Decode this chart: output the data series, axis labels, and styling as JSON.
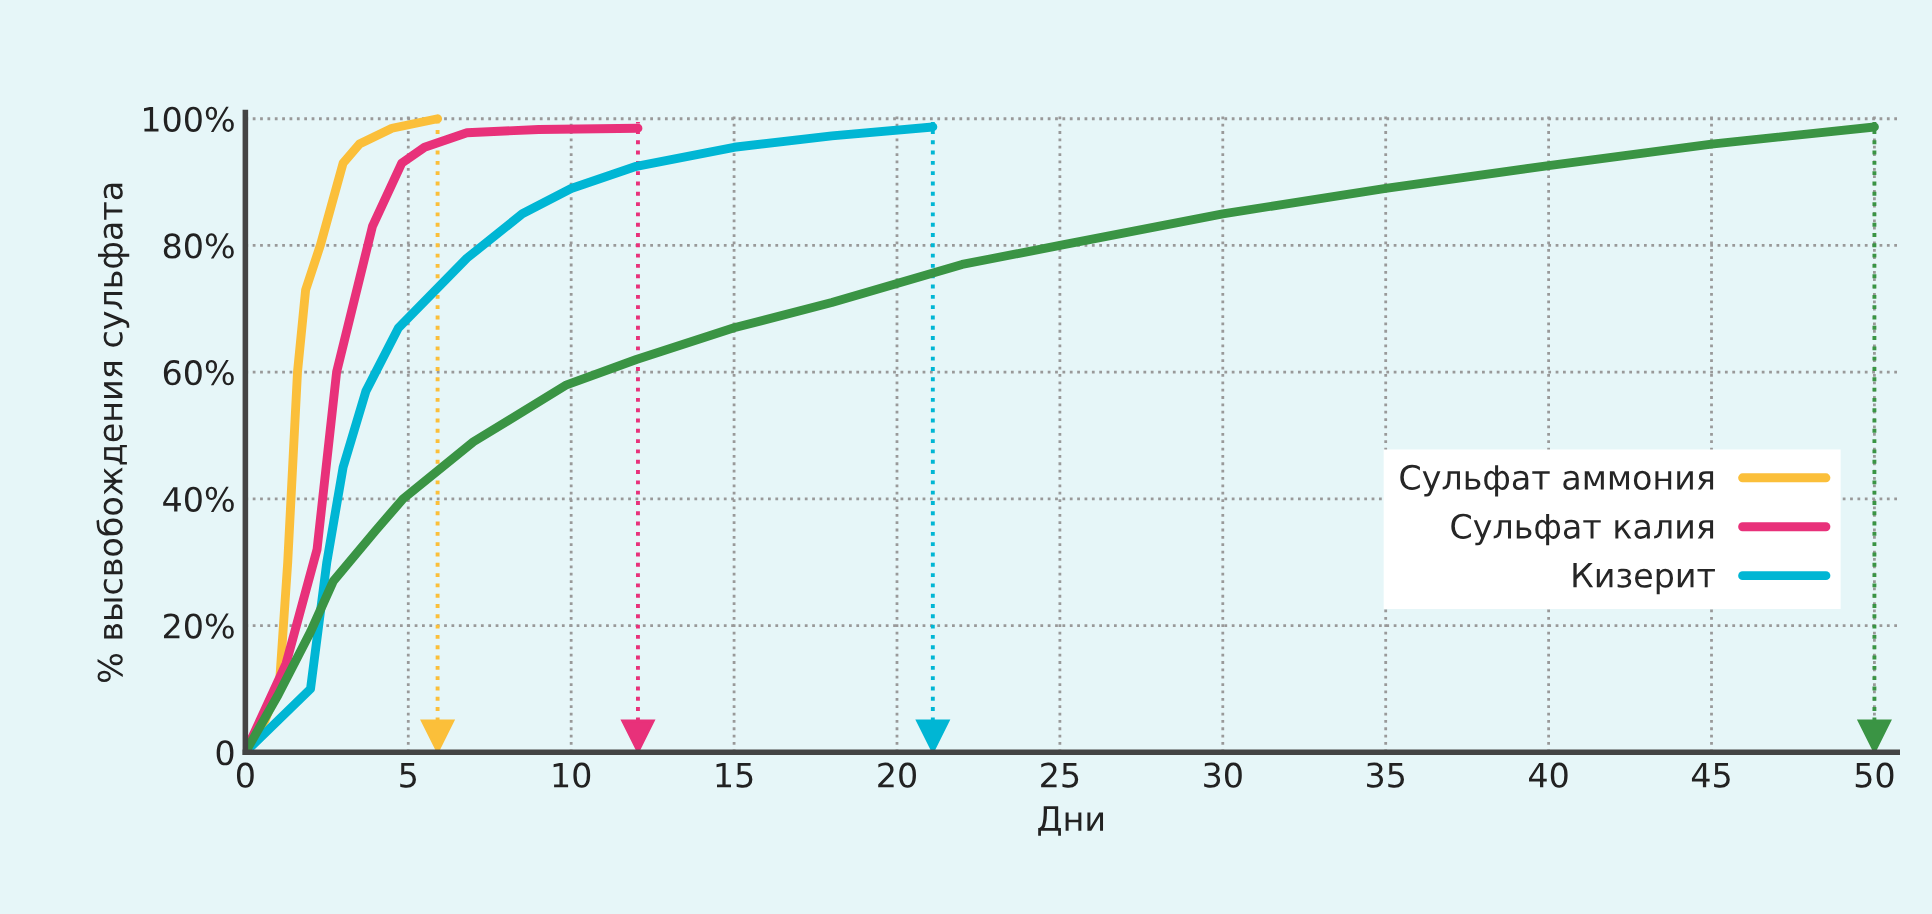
{
  "chart_data": {
    "type": "line",
    "xlabel": "Дни",
    "ylabel": "% высвобождения сульфата",
    "xlim": [
      0,
      50.7
    ],
    "ylim": [
      0,
      101
    ],
    "xticks": [
      0,
      5,
      10,
      15,
      20,
      25,
      30,
      35,
      40,
      45,
      50
    ],
    "yticks": [
      0,
      {
        "value": 20,
        "label": "20%"
      },
      {
        "value": 40,
        "label": "40%"
      },
      {
        "value": 60,
        "label": "60%"
      },
      {
        "value": 80,
        "label": "80%"
      },
      {
        "value": 100,
        "label": "100%"
      }
    ],
    "grid": true,
    "legend": "bottom right",
    "marker": "none",
    "line_style": "solid",
    "series": [
      {
        "name": "Сульфат аммония",
        "color": "#fbbf3a",
        "x": [
          0,
          0.6,
          1.05,
          1.3,
          1.6,
          1.85,
          2.3,
          3.0,
          3.5,
          4.5,
          5.9
        ],
        "values": [
          0,
          5,
          11,
          30,
          60,
          73,
          80,
          93,
          96,
          98.5,
          100
        ]
      },
      {
        "name": "Сульфат калия",
        "color": "#e8317a",
        "x": [
          0,
          1.25,
          2.2,
          2.8,
          3.9,
          4.8,
          5.5,
          6.8,
          9,
          12.05
        ],
        "values": [
          0,
          14,
          32,
          60,
          83,
          93,
          95.5,
          97.8,
          98.3,
          98.5
        ]
      },
      {
        "name": "Кизерит",
        "color": "#00b6d4",
        "x": [
          0,
          2,
          2.5,
          3,
          3.7,
          4.7,
          6.8,
          8.5,
          10,
          12,
          15,
          18,
          21.1
        ],
        "values": [
          0,
          10,
          30,
          45,
          57,
          67,
          78,
          85,
          89,
          92.5,
          95.5,
          97.3,
          98.7
        ]
      },
      {
        "color": "#3a9444",
        "x": [
          0,
          1,
          2,
          2.7,
          4,
          4.84,
          7,
          9.86,
          12,
          15,
          18,
          22,
          25,
          30,
          35,
          40,
          45,
          50
        ],
        "values": [
          0,
          9,
          19,
          27,
          35,
          40,
          49,
          58,
          62,
          67,
          71,
          77,
          80,
          85,
          89,
          92.6,
          96,
          98.7
        ]
      }
    ],
    "ref_lines": [
      {
        "axis": "x",
        "value": 5.9,
        "color": "#fbbf3a",
        "line_style": "dotted"
      },
      {
        "axis": "x",
        "value": 12.05,
        "color": "#e8317a",
        "line_style": "dotted"
      },
      {
        "axis": "x",
        "value": 21.1,
        "color": "#00b6d4",
        "line_style": "dotted"
      },
      {
        "axis": "x",
        "value": 50,
        "color": "#3a9444",
        "line_style": "dotted"
      }
    ]
  }
}
